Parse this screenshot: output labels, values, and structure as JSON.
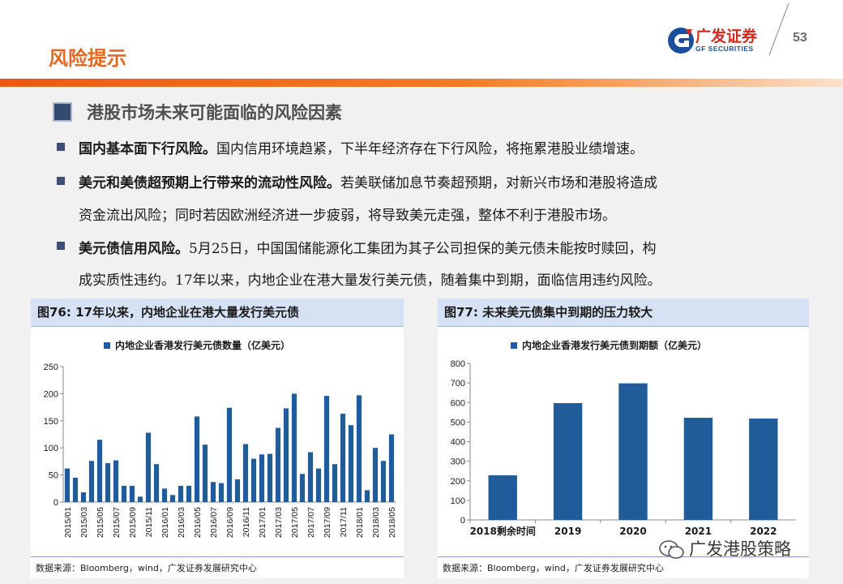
{
  "header": {
    "title": "风险提示",
    "logo_name": "广发证券",
    "logo_en": "GF SECURITIES",
    "page_number": "53"
  },
  "section": {
    "heading": "港股市场未来可能面临的风险因素",
    "bullets": [
      {
        "bold": "国内基本面下行风险。",
        "lines": [
          "国内信用环境趋紧，下半年经济存在下行风险，将拖累港股业绩增速。"
        ]
      },
      {
        "bold": "美元和美债超预期上行带来的流动性风险。",
        "lines": [
          "若美联储加息节奏超预期，对新兴市场和港股将造成",
          "资金流出风险；同时若因欧洲经济进一步疲弱，将导致美元走强，整体不利于港股市场。"
        ]
      },
      {
        "bold": "美元债信用风险。",
        "lines": [
          "5月25日，中国国储能源化工集团为其子公司担保的美元债未能按时赎回，构",
          "成实质性违约。17年以来，内地企业在港大量发行美元债，随着集中到期，面临信用违约风险。"
        ]
      }
    ]
  },
  "figures": {
    "left": {
      "title": "图76:  17年以来，内地企业在港大量发行美元债",
      "source": "数据来源：Bloomberg，wind，广发证券发展研究中心"
    },
    "right": {
      "title": "图77:  未来美元债集中到期的压力较大",
      "source": "数据来源：Bloomberg，wind，广发证券发展研究中心"
    }
  },
  "watermark": {
    "text": "广发港股策略"
  },
  "colors": {
    "accent_orange": "#e8661e",
    "bar_blue": "#1f5c99",
    "heading_box": "#344a6e",
    "panel_title_bg": "#d6e2f3"
  },
  "chart_data": [
    {
      "type": "bar",
      "legend": "内地企业香港发行美元债数量（亿美元）",
      "legend_position": "top-left",
      "categories": [
        "2015/01",
        "2015/02",
        "2015/03",
        "2015/04",
        "2015/05",
        "2015/06",
        "2015/07",
        "2015/08",
        "2015/09",
        "2015/10",
        "2015/11",
        "2015/12",
        "2016/01",
        "2016/02",
        "2016/03",
        "2016/04",
        "2016/05",
        "2016/06",
        "2016/07",
        "2016/08",
        "2016/09",
        "2016/10",
        "2016/11",
        "2016/12",
        "2017/01",
        "2017/02",
        "2017/03",
        "2017/04",
        "2017/05",
        "2017/06",
        "2017/07",
        "2017/08",
        "2017/09",
        "2017/10",
        "2017/11",
        "2017/12",
        "2018/01",
        "2018/02",
        "2018/03",
        "2018/04",
        "2018/05"
      ],
      "tick_labels": [
        "2015/01",
        "2015/03",
        "2015/05",
        "2015/07",
        "2015/09",
        "2015/11",
        "2016/01",
        "2016/03",
        "2016/05",
        "2016/07",
        "2016/09",
        "2016/11",
        "2017/01",
        "2017/03",
        "2017/05",
        "2017/07",
        "2017/09",
        "2017/11",
        "2018/01",
        "2018/03",
        "2018/05"
      ],
      "values": [
        62,
        45,
        18,
        76,
        115,
        72,
        77,
        30,
        30,
        10,
        128,
        70,
        25,
        13,
        30,
        30,
        158,
        106,
        37,
        35,
        174,
        42,
        107,
        80,
        88,
        89,
        137,
        173,
        200,
        52,
        92,
        62,
        196,
        70,
        163,
        142,
        197,
        22,
        100,
        76,
        125
      ],
      "ylim": [
        0,
        250
      ],
      "yticks": [
        0,
        50,
        100,
        150,
        200,
        250
      ],
      "grid": false
    },
    {
      "type": "bar",
      "legend": "内地企业香港发行美元债到期额（亿美元）",
      "legend_position": "top-left",
      "categories": [
        "2018剩余时间",
        "2019",
        "2020",
        "2021",
        "2022"
      ],
      "values": [
        228,
        597,
        698,
        522,
        518
      ],
      "ylim": [
        0,
        800
      ],
      "yticks": [
        0,
        100,
        200,
        300,
        400,
        500,
        600,
        700,
        800
      ],
      "grid": false
    }
  ]
}
